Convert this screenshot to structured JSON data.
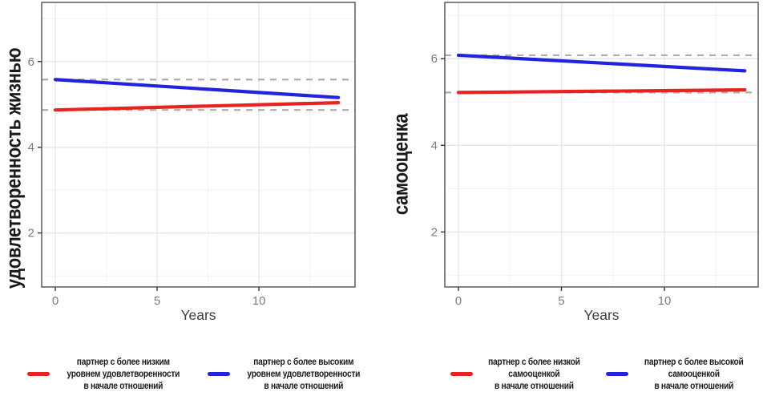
{
  "theme": {
    "background": "#FFFFFF",
    "red": "#E8231F",
    "blue": "#2323DC",
    "reference_line": "#ADADAD",
    "grid_major": "#E7E7EF",
    "grid_minor": "#F1F1F7",
    "panel_border": "#4F4F4F",
    "tick_color": "#333333",
    "tick_label_color": "#7C7C7C",
    "axis_title_color": "#3D3D3D",
    "legend_text_color": "#1A1A1A"
  },
  "chart_data": [
    {
      "type": "line",
      "title": "",
      "xlabel": "Years",
      "ylabel": "удовлетворенность жизнью",
      "xlim": [
        -0.67,
        14.72
      ],
      "ylim": [
        0.74,
        7.38
      ],
      "xticks": [
        0,
        5,
        10
      ],
      "yticks": [
        2,
        4,
        6
      ],
      "xticks_minor": [
        2.5,
        7.5,
        12.5
      ],
      "yticks_minor": [
        1,
        3,
        5,
        7
      ],
      "grid": true,
      "x": [
        0,
        13.9
      ],
      "series": [
        {
          "name": "партнер с более низким уровнем удовлетворенности в начале отношений",
          "color": "#E8231F",
          "values": [
            4.87,
            5.04
          ]
        },
        {
          "name": "партнер с более высоким уровнем удовлетворенности в начале отношений",
          "color": "#2323DC",
          "values": [
            5.58,
            5.16
          ]
        }
      ],
      "reference_lines_dashed": [
        5.58,
        4.87
      ],
      "legend_position": "bottom",
      "legend": [
        {
          "color": "#E8231F",
          "label": "партнер с более низким\nуровнем удовлетворенности\nв начале отношений"
        },
        {
          "color": "#2323DC",
          "label": "партнер с более высоким\nуровнем удовлетворенности\nв начале отношений"
        }
      ]
    },
    {
      "type": "line",
      "title": "",
      "xlabel": "Years",
      "ylabel": "самооценка",
      "xlim": [
        -0.66,
        14.55
      ],
      "ylim": [
        0.73,
        7.3
      ],
      "xticks": [
        0,
        5,
        10
      ],
      "yticks": [
        2,
        4,
        6
      ],
      "xticks_minor": [
        2.5,
        7.5,
        12.5
      ],
      "yticks_minor": [
        1,
        3,
        5,
        7
      ],
      "grid": true,
      "x": [
        0,
        13.9
      ],
      "series": [
        {
          "name": "партнер с более низкой самооценкой в начале отношений",
          "color": "#E8231F",
          "values": [
            5.22,
            5.28
          ]
        },
        {
          "name": "партнер с более высокой самооценкой в начале отношений",
          "color": "#2323DC",
          "values": [
            6.08,
            5.72
          ]
        }
      ],
      "reference_lines_dashed": [
        6.08,
        5.22
      ],
      "legend_position": "bottom",
      "legend": [
        {
          "color": "#E8231F",
          "label": "партнер с более низкой\nсамооценкой\nв начале отношений"
        },
        {
          "color": "#2323DC",
          "label": "партнер с более высокой\nсамооценкой\nв начале отношений"
        }
      ]
    }
  ]
}
